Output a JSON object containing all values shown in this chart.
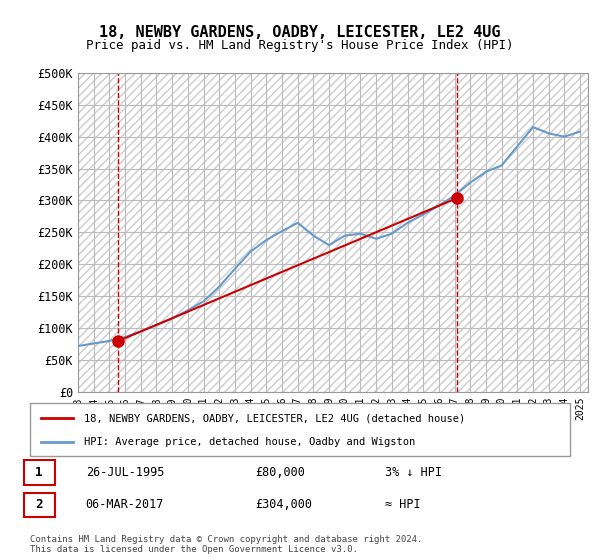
{
  "title": "18, NEWBY GARDENS, OADBY, LEICESTER, LE2 4UG",
  "subtitle": "Price paid vs. HM Land Registry's House Price Index (HPI)",
  "ylabel_ticks": [
    "£0",
    "£50K",
    "£100K",
    "£150K",
    "£200K",
    "£250K",
    "£300K",
    "£350K",
    "£400K",
    "£450K",
    "£500K"
  ],
  "ytick_vals": [
    0,
    50000,
    100000,
    150000,
    200000,
    250000,
    300000,
    350000,
    400000,
    450000,
    500000
  ],
  "ylim": [
    0,
    500000
  ],
  "xlim_start": 1993.0,
  "xlim_end": 2025.5,
  "sale1_x": 1995.57,
  "sale1_y": 80000,
  "sale1_label": "1",
  "sale2_x": 2017.18,
  "sale2_y": 304000,
  "sale2_label": "2",
  "hpi_color": "#6699cc",
  "price_color": "#cc0000",
  "vline_color": "#cc0000",
  "background_hatch_color": "#dddddd",
  "grid_color": "#bbbbbb",
  "legend_line1": "18, NEWBY GARDENS, OADBY, LEICESTER, LE2 4UG (detached house)",
  "legend_line2": "HPI: Average price, detached house, Oadby and Wigston",
  "table_row1": [
    "1",
    "26-JUL-1995",
    "£80,000",
    "3% ↓ HPI"
  ],
  "table_row2": [
    "2",
    "06-MAR-2017",
    "£304,000",
    "≈ HPI"
  ],
  "footer": "Contains HM Land Registry data © Crown copyright and database right 2024.\nThis data is licensed under the Open Government Licence v3.0.",
  "hpi_years": [
    1993,
    1994,
    1995,
    1996,
    1997,
    1998,
    1999,
    2000,
    2001,
    2002,
    2003,
    2004,
    2005,
    2006,
    2007,
    2008,
    2009,
    2010,
    2011,
    2012,
    2013,
    2014,
    2015,
    2016,
    2017,
    2018,
    2019,
    2020,
    2021,
    2022,
    2023,
    2024,
    2025
  ],
  "hpi_values": [
    72000,
    76000,
    80000,
    86000,
    95000,
    105000,
    115000,
    128000,
    142000,
    165000,
    193000,
    220000,
    238000,
    252000,
    265000,
    245000,
    230000,
    245000,
    248000,
    240000,
    248000,
    265000,
    278000,
    292000,
    308000,
    328000,
    345000,
    355000,
    385000,
    415000,
    405000,
    400000,
    408000
  ],
  "price_years": [
    1995.57,
    2017.18
  ],
  "price_values": [
    80000,
    304000
  ],
  "xtick_years": [
    1993,
    1994,
    1995,
    1996,
    1997,
    1998,
    1999,
    2000,
    2001,
    2002,
    2003,
    2004,
    2005,
    2006,
    2007,
    2008,
    2009,
    2010,
    2011,
    2012,
    2013,
    2014,
    2015,
    2016,
    2017,
    2018,
    2019,
    2020,
    2021,
    2022,
    2023,
    2024,
    2025
  ]
}
